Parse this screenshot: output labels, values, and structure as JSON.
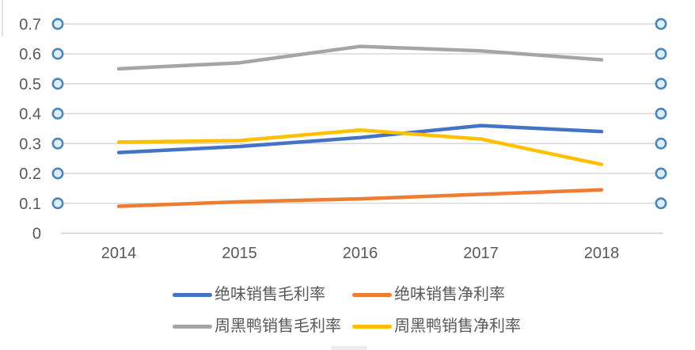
{
  "chart_data": {
    "type": "line",
    "title": "",
    "xlabel": "",
    "ylabel": "",
    "categories": [
      "2014",
      "2015",
      "2016",
      "2017",
      "2018"
    ],
    "series": [
      {
        "name": "绝味销售毛利率",
        "color": "#4472C4",
        "values": [
          0.27,
          0.29,
          0.32,
          0.36,
          0.34
        ]
      },
      {
        "name": "绝味销售净利率",
        "color": "#ED7D31",
        "values": [
          0.09,
          0.105,
          0.115,
          0.13,
          0.145
        ]
      },
      {
        "name": "周黑鸭销售毛利率",
        "color": "#A5A5A5",
        "values": [
          0.55,
          0.57,
          0.625,
          0.61,
          0.58
        ]
      },
      {
        "name": "周黑鸭销售净利率",
        "color": "#FFC000",
        "values": [
          0.305,
          0.31,
          0.345,
          0.315,
          0.23
        ]
      }
    ],
    "ylim": [
      0,
      0.7
    ],
    "ytick_labels": [
      "0",
      "0.1",
      "0.2",
      "0.3",
      "0.4",
      "0.5",
      "0.6",
      "0.7"
    ],
    "grid": "horizontal",
    "legend_position": "bottom",
    "gridline_end_markers": {
      "shape": "circle",
      "on_ticks_above_zero": true,
      "sides": "both"
    }
  },
  "style_colors": {
    "gridline": "#D8D8D8",
    "zero_axis": "#CDCDCD",
    "tick_text": "#595959",
    "marker_ring": "#4C86B8",
    "marker_fill": "#DDEEF7",
    "background": "#FFFFFF"
  }
}
